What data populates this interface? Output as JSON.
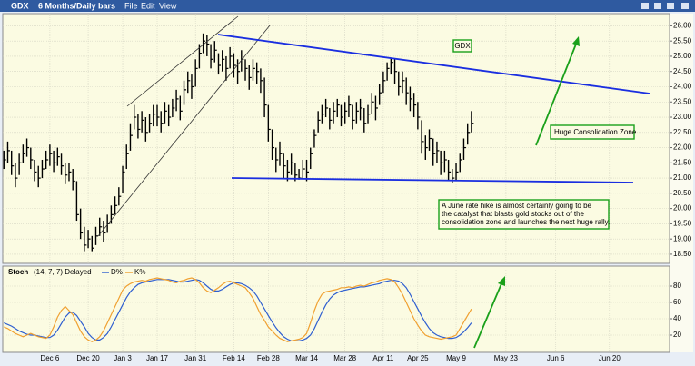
{
  "menu": [
    "File",
    "Edit",
    "View"
  ],
  "chart_data": [
    {
      "type": "ohlc",
      "title": "GDX",
      "subtitle": "6 Months/Daily bars",
      "annotations": [
        "GDX",
        "Huge Consolidation Zone",
        "A June rate hike is almost certainly going to be",
        "the catalyst that blasts gold stocks out of the",
        "consolidation zone and launches the next huge rally."
      ],
      "x": [
        0,
        1,
        2,
        3,
        4,
        5,
        6,
        7,
        8,
        9,
        10,
        11,
        12,
        13,
        14,
        15,
        16,
        17,
        18,
        19,
        20,
        21,
        22,
        23,
        24,
        25,
        26,
        27,
        28,
        29,
        30,
        31,
        32,
        33,
        34,
        35,
        36,
        37,
        38,
        39,
        40,
        41,
        42,
        43,
        44,
        45,
        46,
        47,
        48,
        49,
        50,
        51,
        52,
        53,
        54,
        55,
        56,
        57,
        58,
        59,
        60,
        61,
        62,
        63,
        64,
        65,
        66,
        67,
        68,
        69,
        70,
        71,
        72,
        73,
        74,
        75,
        76,
        77,
        78,
        79,
        80,
        81,
        82,
        83,
        84,
        85,
        86,
        87,
        88,
        89,
        90,
        91,
        92,
        93,
        94,
        95,
        96,
        97,
        98,
        99,
        100,
        101,
        102,
        103,
        104,
        105,
        106,
        107,
        108,
        109,
        110,
        111,
        112,
        113,
        114,
        115,
        116,
        117,
        118,
        119,
        120,
        121,
        122
      ],
      "high": [
        21.9,
        22.2,
        21.9,
        21.5,
        21.8,
        22.1,
        22.3,
        22.0,
        21.6,
        21.4,
        21.6,
        21.9,
        22.1,
        21.9,
        22.0,
        21.8,
        21.5,
        21.5,
        21.3,
        20.9,
        20.0,
        19.4,
        19.3,
        19.1,
        19.4,
        19.7,
        19.6,
        19.8,
        20.1,
        20.4,
        20.7,
        21.4,
        22.1,
        22.8,
        23.4,
        23.1,
        23.2,
        23.0,
        23.1,
        23.4,
        23.4,
        23.2,
        23.5,
        23.4,
        23.6,
        23.9,
        23.7,
        24.2,
        24.5,
        24.4,
        24.9,
        25.4,
        25.75,
        25.7,
        25.4,
        25.5,
        25.1,
        25.2,
        25.0,
        25.3,
        25.1,
        24.9,
        25.2,
        24.9,
        24.7,
        24.9,
        24.8,
        24.6,
        24.3,
        23.4,
        22.6,
        22.0,
        22.2,
        21.8,
        21.6,
        21.8,
        21.5,
        21.3,
        21.6,
        21.6,
        22.0,
        22.6,
        23.2,
        23.4,
        23.6,
        23.3,
        23.5,
        23.6,
        23.4,
        23.5,
        23.7,
        23.4,
        23.5,
        23.6,
        23.3,
        23.4,
        23.8,
        23.7,
        24.1,
        24.5,
        24.8,
        24.95,
        24.9,
        24.5,
        24.5,
        24.3,
        24.0,
        23.8,
        23.5,
        22.9,
        22.4,
        22.6,
        22.3,
        22.2,
        21.9,
        21.9,
        21.6,
        21.3,
        21.5,
        21.8,
        22.3,
        22.8,
        23.2
      ],
      "low": [
        21.3,
        21.5,
        21.1,
        20.7,
        21.1,
        21.5,
        21.7,
        21.3,
        20.9,
        20.7,
        21.0,
        21.3,
        21.4,
        21.2,
        21.4,
        21.1,
        20.8,
        20.9,
        20.6,
        19.6,
        19.0,
        18.6,
        18.7,
        18.6,
        18.8,
        19.1,
        18.9,
        19.2,
        19.5,
        19.8,
        20.1,
        20.5,
        21.3,
        21.9,
        22.6,
        22.3,
        22.5,
        22.2,
        22.5,
        22.7,
        22.7,
        22.5,
        22.8,
        22.7,
        23.0,
        23.2,
        22.9,
        23.4,
        23.8,
        23.6,
        24.0,
        24.6,
        25.1,
        25.0,
        24.6,
        24.8,
        24.4,
        24.5,
        24.2,
        24.6,
        24.3,
        24.1,
        24.5,
        24.2,
        23.9,
        24.2,
        24.1,
        23.8,
        23.0,
        22.2,
        21.6,
        21.2,
        21.4,
        21.0,
        20.9,
        21.1,
        20.9,
        20.95,
        21.0,
        20.9,
        21.3,
        22.0,
        22.5,
        22.8,
        23.0,
        22.6,
        22.8,
        23.0,
        22.7,
        22.8,
        23.0,
        22.6,
        22.8,
        22.9,
        22.5,
        22.8,
        23.1,
        22.9,
        23.4,
        23.8,
        24.2,
        24.4,
        24.1,
        23.7,
        23.8,
        23.4,
        23.2,
        23.0,
        22.6,
        21.8,
        21.6,
        21.9,
        21.4,
        21.5,
        21.1,
        21.2,
        20.9,
        20.85,
        20.9,
        21.2,
        21.6,
        22.1,
        22.5
      ],
      "close": [
        21.6,
        21.9,
        21.4,
        21.0,
        21.5,
        21.8,
        22.0,
        21.6,
        21.2,
        21.0,
        21.3,
        21.6,
        21.8,
        21.5,
        21.7,
        21.4,
        21.1,
        21.2,
        20.9,
        19.8,
        19.2,
        18.8,
        19.0,
        18.7,
        19.1,
        19.4,
        19.2,
        19.5,
        19.8,
        20.1,
        20.4,
        21.2,
        21.8,
        22.4,
        23.0,
        22.6,
        22.9,
        22.5,
        22.8,
        23.1,
        23.0,
        22.8,
        23.2,
        23.0,
        23.3,
        23.6,
        23.2,
        23.9,
        24.2,
        24.0,
        24.6,
        25.1,
        25.5,
        25.4,
        24.9,
        25.2,
        24.7,
        24.9,
        24.6,
        25.0,
        24.7,
        24.5,
        24.9,
        24.6,
        24.3,
        24.6,
        24.5,
        24.2,
        23.4,
        22.6,
        22.0,
        21.6,
        21.8,
        21.4,
        21.2,
        21.5,
        21.1,
        21.0,
        21.3,
        21.2,
        21.8,
        22.4,
        22.9,
        23.1,
        23.3,
        22.9,
        23.2,
        23.4,
        23.0,
        23.2,
        23.4,
        22.9,
        23.2,
        23.3,
        22.8,
        23.1,
        23.5,
        23.3,
        23.8,
        24.2,
        24.6,
        24.8,
        24.5,
        24.0,
        24.2,
        23.8,
        23.6,
        23.4,
        23.0,
        22.2,
        22.0,
        22.3,
        21.8,
        21.9,
        21.5,
        21.6,
        21.2,
        21.0,
        21.2,
        21.6,
        22.0,
        22.5,
        22.8
      ],
      "color": "#000000",
      "xlim": [
        -0.3,
        173.7
      ],
      "xticks": [
        {
          "value": 12,
          "label": "Dec 6"
        },
        {
          "value": 22,
          "label": "Dec 20"
        },
        {
          "value": 31,
          "label": "Jan 3"
        },
        {
          "value": 40,
          "label": "Jan 17"
        },
        {
          "value": 50,
          "label": "Jan 31"
        },
        {
          "value": 60,
          "label": "Feb 14"
        },
        {
          "value": 69,
          "label": "Feb 28"
        },
        {
          "value": 79,
          "label": "Mar 14"
        },
        {
          "value": 89,
          "label": "Mar 28"
        },
        {
          "value": 99,
          "label": "Apr 11"
        },
        {
          "value": 108,
          "label": "Apr 25"
        },
        {
          "value": 118,
          "label": "May 9"
        },
        {
          "value": 131,
          "label": "May 23"
        },
        {
          "value": 144,
          "label": "Jun 6"
        },
        {
          "value": 158,
          "label": "Jun 20"
        }
      ],
      "ylim": [
        18.2,
        26.4
      ],
      "yticks": [
        {
          "value": 18.5,
          "label": "18.50"
        },
        {
          "value": 19,
          "label": "19.00"
        },
        {
          "value": 19.5,
          "label": "19.50"
        },
        {
          "value": 20,
          "label": "20.00"
        },
        {
          "value": 20.5,
          "label": "20.50"
        },
        {
          "value": 21,
          "label": "21.00"
        },
        {
          "value": 21.5,
          "label": "21.50"
        },
        {
          "value": 22,
          "label": "22.00"
        },
        {
          "value": 22.5,
          "label": "22.50"
        },
        {
          "value": 23,
          "label": "23.00"
        },
        {
          "value": 23.5,
          "label": "23.50"
        },
        {
          "value": 24,
          "label": "24.00"
        },
        {
          "value": 24.5,
          "label": "24.50"
        },
        {
          "value": 25,
          "label": "25.00"
        },
        {
          "value": 25.5,
          "label": "25.50"
        },
        {
          "value": 26,
          "label": "26.00"
        }
      ],
      "grid": true
    },
    {
      "type": "line",
      "title": "Stoch",
      "subtitle": "(14, 7, 7) Delayed",
      "x": [
        0,
        1,
        2,
        3,
        4,
        5,
        6,
        7,
        8,
        9,
        10,
        11,
        12,
        13,
        14,
        15,
        16,
        17,
        18,
        19,
        20,
        21,
        22,
        23,
        24,
        25,
        26,
        27,
        28,
        29,
        30,
        31,
        32,
        33,
        34,
        35,
        36,
        37,
        38,
        39,
        40,
        41,
        42,
        43,
        44,
        45,
        46,
        47,
        48,
        49,
        50,
        51,
        52,
        53,
        54,
        55,
        56,
        57,
        58,
        59,
        60,
        61,
        62,
        63,
        64,
        65,
        66,
        67,
        68,
        69,
        70,
        71,
        72,
        73,
        74,
        75,
        76,
        77,
        78,
        79,
        80,
        81,
        82,
        83,
        84,
        85,
        86,
        87,
        88,
        89,
        90,
        91,
        92,
        93,
        94,
        95,
        96,
        97,
        98,
        99,
        100,
        101,
        102,
        103,
        104,
        105,
        106,
        107,
        108,
        109,
        110,
        111,
        112,
        113,
        114,
        115,
        116,
        117,
        118,
        119,
        120,
        121,
        122
      ],
      "series": [
        {
          "name": "D%",
          "color": "#2f5fd0",
          "values": [
            35,
            33,
            31,
            28,
            25,
            23,
            21,
            20,
            20,
            19,
            18,
            17,
            17,
            20,
            26,
            34,
            42,
            47,
            48,
            44,
            37,
            30,
            22,
            17,
            14,
            14,
            17,
            22,
            30,
            39,
            48,
            57,
            66,
            73,
            78,
            82,
            84,
            85,
            86,
            87,
            88,
            88,
            88,
            88,
            87,
            86,
            85,
            85,
            86,
            87,
            88,
            87,
            84,
            80,
            76,
            74,
            74,
            76,
            79,
            82,
            84,
            84,
            83,
            81,
            78,
            74,
            68,
            60,
            52,
            44,
            36,
            29,
            23,
            18,
            15,
            13,
            13,
            13,
            14,
            16,
            20,
            28,
            38,
            48,
            57,
            64,
            69,
            72,
            74,
            75,
            76,
            77,
            78,
            79,
            79,
            80,
            81,
            82,
            83,
            85,
            86,
            87,
            87,
            86,
            83,
            78,
            70,
            61,
            52,
            43,
            35,
            28,
            23,
            20,
            18,
            17,
            16,
            16,
            17,
            20,
            24,
            29,
            35
          ]
        },
        {
          "name": "K%",
          "color": "#f0a030",
          "values": [
            30,
            28,
            25,
            22,
            20,
            18,
            20,
            22,
            20,
            18,
            17,
            16,
            20,
            30,
            42,
            50,
            55,
            50,
            45,
            35,
            25,
            18,
            14,
            12,
            14,
            18,
            25,
            35,
            45,
            55,
            65,
            75,
            80,
            83,
            85,
            86,
            87,
            86,
            88,
            89,
            90,
            89,
            88,
            87,
            85,
            84,
            86,
            87,
            89,
            90,
            88,
            84,
            78,
            74,
            72,
            75,
            78,
            82,
            85,
            86,
            84,
            82,
            80,
            78,
            72,
            65,
            55,
            45,
            38,
            30,
            25,
            20,
            16,
            14,
            12,
            13,
            14,
            15,
            17,
            22,
            35,
            50,
            62,
            70,
            73,
            74,
            75,
            76,
            78,
            78,
            79,
            78,
            80,
            81,
            80,
            82,
            84,
            85,
            87,
            88,
            89,
            88,
            85,
            78,
            70,
            60,
            50,
            40,
            32,
            25,
            20,
            18,
            17,
            16,
            15,
            16,
            17,
            18,
            20,
            28,
            36,
            44,
            52
          ]
        }
      ],
      "xlim": [
        -0.3,
        173.7
      ],
      "ylim": [
        0,
        100
      ],
      "yticks": [
        20,
        40,
        60,
        80
      ],
      "grid": true
    }
  ]
}
